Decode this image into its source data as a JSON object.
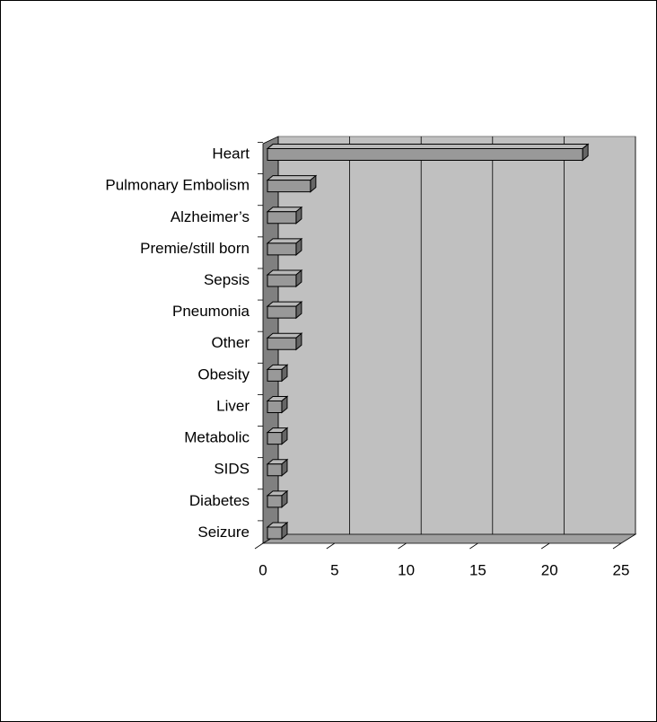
{
  "chart_data": {
    "type": "bar",
    "orientation": "horizontal",
    "categories": [
      "Heart",
      "Pulmonary Embolism",
      "Alzheimer’s",
      "Premie/still born",
      "Sepsis",
      "Pneumonia",
      "Other",
      "Obesity",
      "Liver",
      "Metabolic",
      "SIDS",
      "Diabetes",
      "Seizure"
    ],
    "values": [
      22,
      3,
      2,
      2,
      2,
      2,
      2,
      1,
      1,
      1,
      1,
      1,
      1
    ],
    "color": "#999999",
    "xlim": [
      0,
      25
    ],
    "xticks": [
      0,
      5,
      10,
      15,
      20,
      25
    ],
    "grid": true
  }
}
